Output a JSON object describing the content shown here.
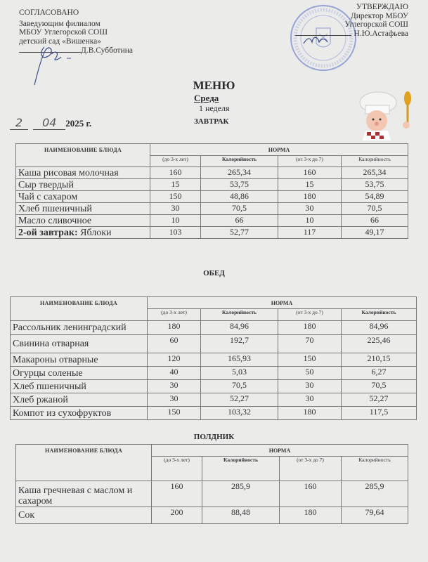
{
  "approved_left": {
    "title": "СОГЛАСОВАНО",
    "line1": "Заведующим филиалом",
    "line2": "МБОУ Углегорской СОШ",
    "line3": "детский сад «Вишенка»",
    "signer": "Д.В.Субботина"
  },
  "approved_right": {
    "title": "УТВЕРЖДАЮ",
    "line1": "Директор МБОУ",
    "line2": "Углегорской СОШ",
    "signer": "Н.Ю.Астафьева"
  },
  "menu": {
    "title": "МЕНЮ",
    "day": "Среда",
    "week": "1 неделя",
    "date_day": "2",
    "date_month": "04",
    "date_year": "2025 г."
  },
  "header": {
    "name": "НАИМЕНОВАНИЕ БЛЮДА",
    "norm": "НОРМА",
    "age1": "(до 3-х лет)",
    "cal": "Калорийность",
    "age2": "(от 3-х до 7)"
  },
  "sections": [
    {
      "title": "ЗАВТРАК",
      "rows": [
        {
          "name": "Каша рисовая молочная",
          "a": "160",
          "ca": "265,34",
          "b": "160",
          "cb": "265,34"
        },
        {
          "name": "Сыр твердый",
          "a": "15",
          "ca": "53,75",
          "b": "15",
          "cb": "53,75"
        },
        {
          "name": "Чай с сахаром",
          "a": "150",
          "ca": "48,86",
          "b": "180",
          "cb": "54,89"
        },
        {
          "name": "Хлеб пшеничный",
          "a": "30",
          "ca": "70,5",
          "b": "30",
          "cb": "70,5"
        },
        {
          "name": "Масло сливочное",
          "a": "10",
          "ca": "66",
          "b": "10",
          "cb": "66"
        },
        {
          "prefix": "2-ой завтрак:",
          "name": "Яблоки",
          "a": "103",
          "ca": "52,77",
          "b": "117",
          "cb": "49,17"
        }
      ]
    },
    {
      "title": "ОБЕД",
      "rows": [
        {
          "name": "Рассольник ленинградский",
          "a": "180",
          "ca": "84,96",
          "b": "180",
          "cb": "84,96"
        },
        {
          "name": "Свинина отварная",
          "a": "60",
          "ca": "192,7",
          "b": "70",
          "cb": "225,46"
        },
        {
          "name": "Макароны  отварные",
          "a": "120",
          "ca": "165,93",
          "b": "150",
          "cb": "210,15"
        },
        {
          "name": "Огурцы соленые",
          "a": "40",
          "ca": "5,03",
          "b": "50",
          "cb": "6,27"
        },
        {
          "name": "Хлеб пшеничный",
          "a": "30",
          "ca": "70,5",
          "b": "30",
          "cb": "70,5"
        },
        {
          "name": "Хлеб ржаной",
          "a": "30",
          "ca": "52,27",
          "b": "30",
          "cb": "52,27"
        },
        {
          "name": "Компот из сухофруктов",
          "a": "150",
          "ca": "103,32",
          "b": "180",
          "cb": "117,5"
        }
      ]
    },
    {
      "title": "ПОЛДНИК",
      "rows": [
        {
          "name": "Каша гречневая с маслом и сахаром",
          "a": "160",
          "ca": "285,9",
          "b": "160",
          "cb": "285,9"
        },
        {
          "name": "Сок",
          "a": "200",
          "ca": "88,48",
          "b": "180",
          "cb": "79,64"
        }
      ]
    }
  ]
}
